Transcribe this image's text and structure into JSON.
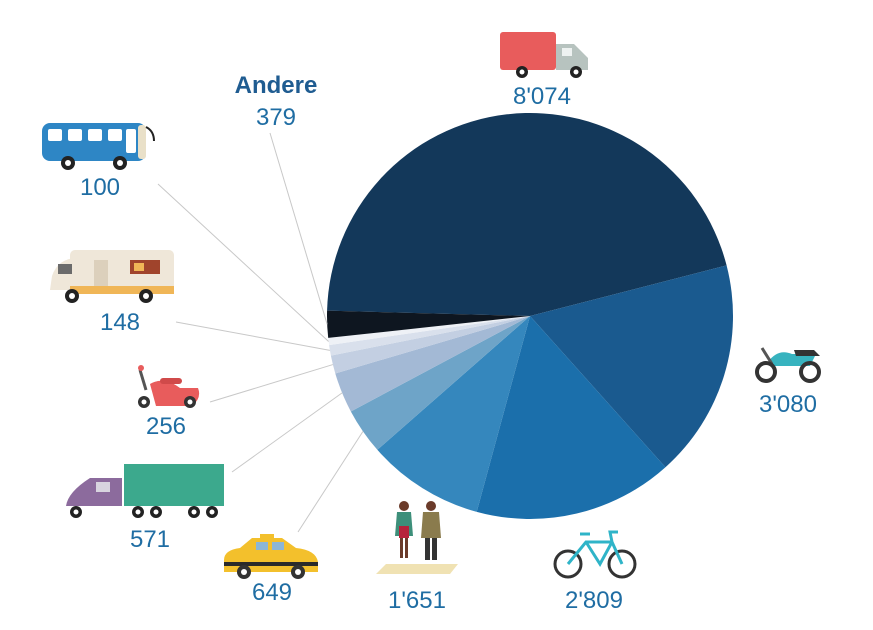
{
  "chart_data": {
    "type": "pie",
    "title": "",
    "slices": [
      {
        "label": "8'074",
        "value": 8074,
        "color": "#13385a",
        "icon": "truck-icon"
      },
      {
        "label": "3'080",
        "value": 3080,
        "color": "#1a5a8f",
        "icon": "motorcycle-icon"
      },
      {
        "label": "2'809",
        "value": 2809,
        "color": "#1b6fab",
        "icon": "bicycle-icon"
      },
      {
        "label": "1'651",
        "value": 1651,
        "color": "#3587bd",
        "icon": "pedestrians-icon"
      },
      {
        "label": "649",
        "value": 649,
        "color": "#6ea4c8",
        "icon": "taxi-icon"
      },
      {
        "label": "571",
        "value": 571,
        "color": "#a3b9d5",
        "icon": "lorry-icon"
      },
      {
        "label": "256",
        "value": 256,
        "color": "#c3cfe2",
        "icon": "scooter-icon"
      },
      {
        "label": "148",
        "value": 148,
        "color": "#d9e0ec",
        "icon": "camper-van-icon"
      },
      {
        "label": "100",
        "value": 100,
        "color": "#eef1f6",
        "icon": "bus-icon"
      },
      {
        "label": "379",
        "value": 379,
        "color": "#0e1620",
        "icon": "",
        "name": "Andere"
      }
    ]
  }
}
